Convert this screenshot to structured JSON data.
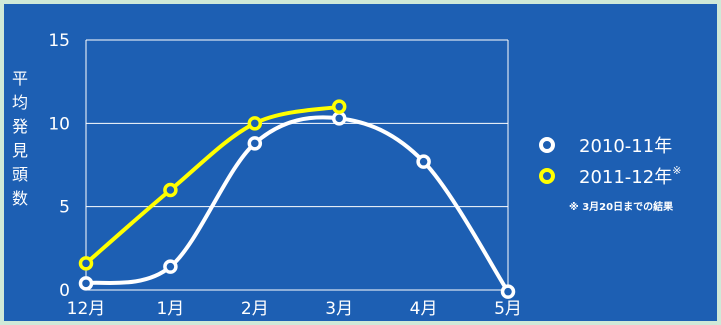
{
  "chart_data": {
    "type": "line",
    "categories": [
      "12月",
      "1月",
      "2月",
      "3月",
      "4月",
      "5月"
    ],
    "ylabel": "平均発見頭数",
    "ylim": [
      0,
      15
    ],
    "yticks": [
      0,
      5,
      10,
      15
    ],
    "grid": true,
    "legend_position": "right",
    "series": [
      {
        "name": "2010-11年",
        "color": "#ffffff",
        "values": [
          0.4,
          1.4,
          8.8,
          10.3,
          7.7,
          -0.1
        ]
      },
      {
        "name": "2011-12年",
        "name_suffix": "※",
        "color": "#ffff00",
        "values": [
          1.6,
          6.0,
          10.0,
          11.0,
          null,
          null
        ]
      }
    ],
    "note": "※ 3月20日までの結果"
  },
  "colors": {
    "background": "#1d5fb3",
    "outer_border": "#cfe9d8",
    "gridline": "#ffffff"
  }
}
